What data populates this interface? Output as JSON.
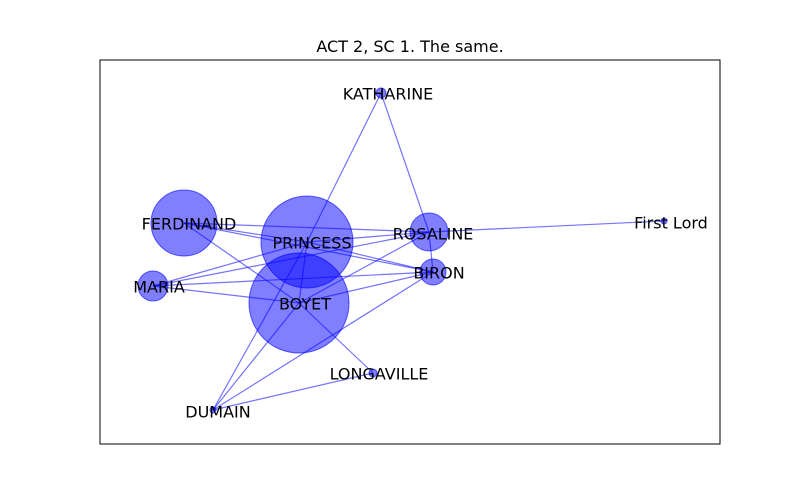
{
  "title": "ACT 2, SC 1. The same.",
  "colors": {
    "node": "#0000ff",
    "edge": "#0000ff",
    "frame": "#000000"
  },
  "nodes": [
    {
      "id": "KATHARINE",
      "label": "KATHARINE"
    },
    {
      "id": "FERDINAND",
      "label": "FERDINAND"
    },
    {
      "id": "PRINCESS",
      "label": "PRINCESS"
    },
    {
      "id": "ROSALINE",
      "label": "ROSALINE"
    },
    {
      "id": "FIRSTLORD",
      "label": "First Lord"
    },
    {
      "id": "MARIA",
      "label": "MARIA"
    },
    {
      "id": "BIRON",
      "label": "BIRON"
    },
    {
      "id": "BOYET",
      "label": "BOYET"
    },
    {
      "id": "LONGAVILLE",
      "label": "LONGAVILLE"
    },
    {
      "id": "DUMAIN",
      "label": "DUMAIN"
    }
  ],
  "edges": [
    [
      "KATHARINE",
      "PRINCESS"
    ],
    [
      "KATHARINE",
      "ROSALINE"
    ],
    [
      "FERDINAND",
      "PRINCESS"
    ],
    [
      "FERDINAND",
      "ROSALINE"
    ],
    [
      "FERDINAND",
      "BIRON"
    ],
    [
      "FERDINAND",
      "BOYET"
    ],
    [
      "PRINCESS",
      "ROSALINE"
    ],
    [
      "PRINCESS",
      "BIRON"
    ],
    [
      "PRINCESS",
      "MARIA"
    ],
    [
      "PRINCESS",
      "BOYET"
    ],
    [
      "PRINCESS",
      "DUMAIN"
    ],
    [
      "ROSALINE",
      "FIRSTLORD"
    ],
    [
      "ROSALINE",
      "MARIA"
    ],
    [
      "ROSALINE",
      "BIRON"
    ],
    [
      "ROSALINE",
      "BOYET"
    ],
    [
      "MARIA",
      "BIRON"
    ],
    [
      "MARIA",
      "BOYET"
    ],
    [
      "BIRON",
      "BOYET"
    ],
    [
      "BIRON",
      "DUMAIN"
    ],
    [
      "BOYET",
      "LONGAVILLE"
    ],
    [
      "BOYET",
      "DUMAIN"
    ],
    [
      "LONGAVILLE",
      "DUMAIN"
    ]
  ]
}
